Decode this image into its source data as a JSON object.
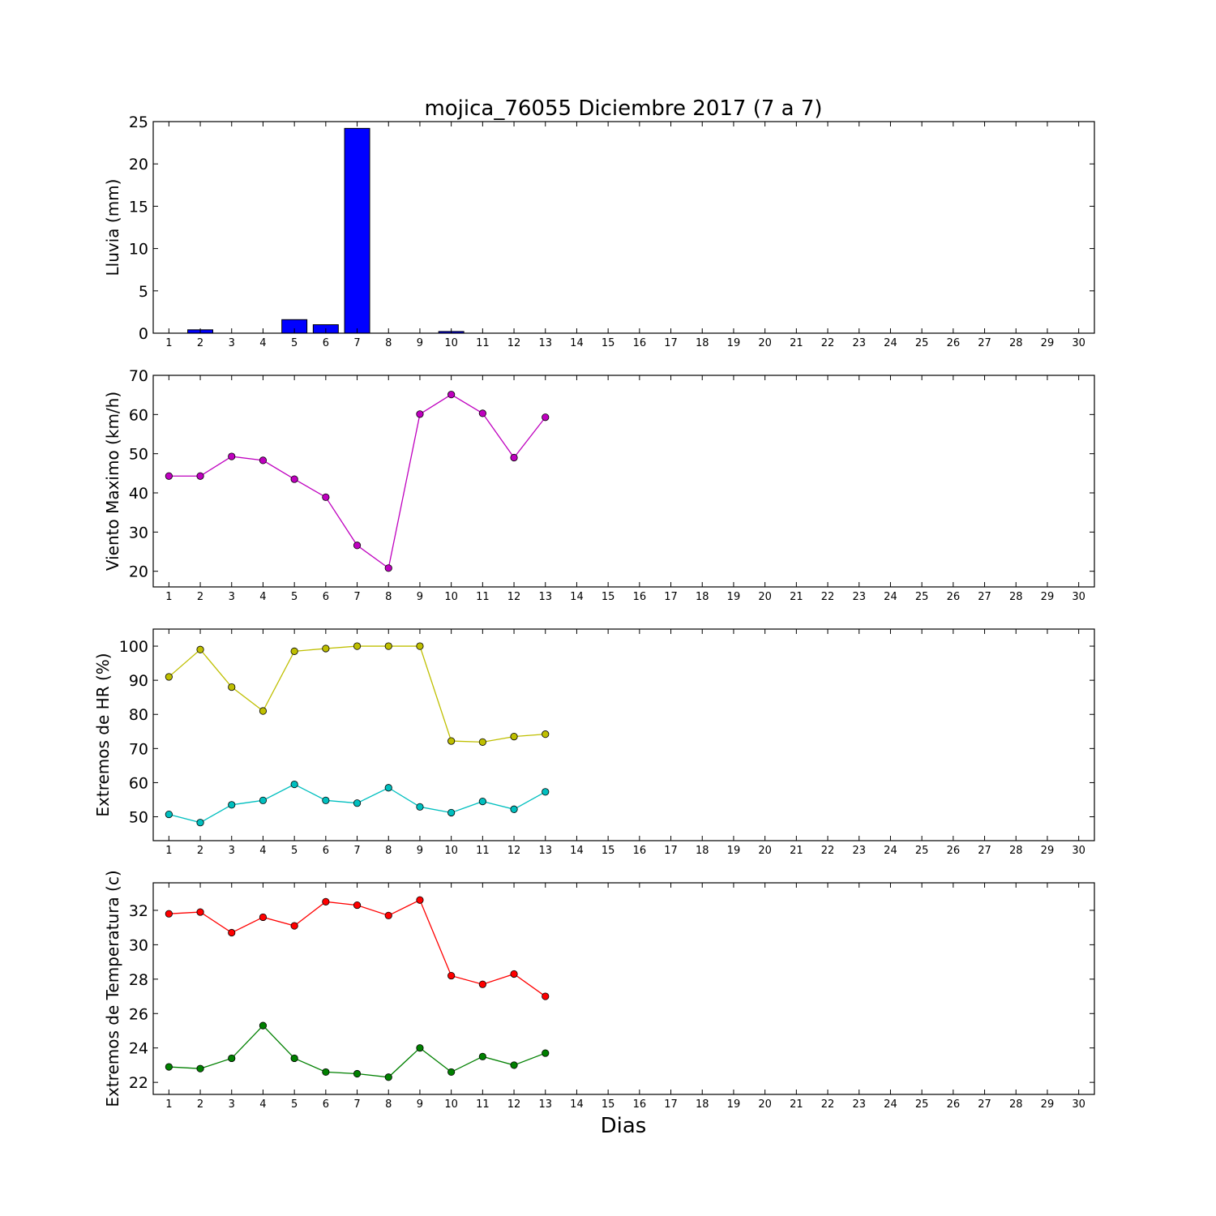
{
  "title": "mojica_76055 Diciembre 2017  (7 a 7)",
  "xlabel": "Dias",
  "chart_data": [
    {
      "type": "bar",
      "title": "mojica_76055 Diciembre 2017  (7 a 7)",
      "ylabel": "Lluvia (mm)",
      "xlim": [
        0.5,
        30.5
      ],
      "ylim": [
        0,
        25
      ],
      "yticks": [
        0,
        5,
        10,
        15,
        20,
        25
      ],
      "xticks": [
        1,
        2,
        3,
        4,
        5,
        6,
        7,
        8,
        9,
        10,
        11,
        12,
        13,
        14,
        15,
        16,
        17,
        18,
        19,
        20,
        21,
        22,
        23,
        24,
        25,
        26,
        27,
        28,
        29,
        30
      ],
      "grid": false,
      "series": [
        {
          "color": "#0000ff",
          "x": [
            1,
            2,
            3,
            4,
            5,
            6,
            7,
            8,
            9,
            10,
            11,
            12,
            13
          ],
          "values": [
            0,
            0.4,
            0,
            0,
            1.6,
            1.0,
            24.2,
            0,
            0,
            0.2,
            0,
            0,
            0
          ]
        }
      ]
    },
    {
      "type": "line",
      "ylabel": "Viento Maximo (km/h)",
      "xlim": [
        0.5,
        30.5
      ],
      "ylim": [
        16,
        70
      ],
      "yticks": [
        20,
        30,
        40,
        50,
        60,
        70
      ],
      "xticks": [
        1,
        2,
        3,
        4,
        5,
        6,
        7,
        8,
        9,
        10,
        11,
        12,
        13,
        14,
        15,
        16,
        17,
        18,
        19,
        20,
        21,
        22,
        23,
        24,
        25,
        26,
        27,
        28,
        29,
        30
      ],
      "grid": false,
      "series": [
        {
          "color": "#bf00bf",
          "x": [
            1,
            2,
            3,
            4,
            5,
            6,
            7,
            8,
            9,
            10,
            11,
            12,
            13
          ],
          "values": [
            44.3,
            44.3,
            49.3,
            48.3,
            43.5,
            38.9,
            26.6,
            20.8,
            60.1,
            65.1,
            60.3,
            49.0,
            59.3
          ]
        }
      ]
    },
    {
      "type": "line",
      "ylabel": "Extremos de HR (%)",
      "xlim": [
        0.5,
        30.5
      ],
      "ylim": [
        43,
        105
      ],
      "yticks": [
        50,
        60,
        70,
        80,
        90,
        100
      ],
      "xticks": [
        1,
        2,
        3,
        4,
        5,
        6,
        7,
        8,
        9,
        10,
        11,
        12,
        13,
        14,
        15,
        16,
        17,
        18,
        19,
        20,
        21,
        22,
        23,
        24,
        25,
        26,
        27,
        28,
        29,
        30
      ],
      "grid": false,
      "series": [
        {
          "color": "#bfbf00",
          "x": [
            1,
            2,
            3,
            4,
            5,
            6,
            7,
            8,
            9,
            10,
            11,
            12,
            13
          ],
          "values": [
            91,
            99,
            88,
            81,
            98.5,
            99.3,
            100,
            100,
            100,
            72.2,
            71.9,
            73.5,
            74.2
          ]
        },
        {
          "color": "#00bfbf",
          "x": [
            1,
            2,
            3,
            4,
            5,
            6,
            7,
            8,
            9,
            10,
            11,
            12,
            13
          ],
          "values": [
            50.7,
            48.3,
            53.5,
            54.8,
            59.5,
            54.8,
            54.0,
            58.5,
            52.9,
            51.2,
            54.5,
            52.2,
            57.3
          ]
        }
      ]
    },
    {
      "type": "line",
      "ylabel": "Extremos de Temperatura (c)",
      "xlabel": "Dias",
      "xlim": [
        0.5,
        30.5
      ],
      "ylim": [
        21.3,
        33.6
      ],
      "yticks": [
        22,
        24,
        26,
        28,
        30,
        32
      ],
      "xticks": [
        1,
        2,
        3,
        4,
        5,
        6,
        7,
        8,
        9,
        10,
        11,
        12,
        13,
        14,
        15,
        16,
        17,
        18,
        19,
        20,
        21,
        22,
        23,
        24,
        25,
        26,
        27,
        28,
        29,
        30
      ],
      "grid": false,
      "series": [
        {
          "color": "#ff0000",
          "x": [
            1,
            2,
            3,
            4,
            5,
            6,
            7,
            8,
            9,
            10,
            11,
            12,
            13
          ],
          "values": [
            31.8,
            31.9,
            30.7,
            31.6,
            31.1,
            32.5,
            32.3,
            31.7,
            32.6,
            28.2,
            27.7,
            28.3,
            27.0
          ]
        },
        {
          "color": "#008000",
          "x": [
            1,
            2,
            3,
            4,
            5,
            6,
            7,
            8,
            9,
            10,
            11,
            12,
            13
          ],
          "values": [
            22.9,
            22.8,
            23.4,
            25.3,
            23.4,
            22.6,
            22.5,
            22.3,
            24.0,
            22.6,
            23.5,
            23.0,
            23.7
          ]
        }
      ]
    }
  ]
}
